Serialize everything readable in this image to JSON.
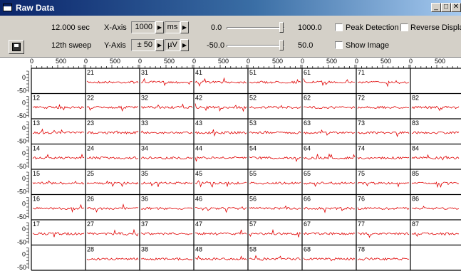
{
  "window": {
    "title": "Raw Data",
    "minimize": "_",
    "restore": "□",
    "close": "✕"
  },
  "toolbar": {
    "time": "12.000 sec",
    "sweep": "12th sweep",
    "xaxis_label": "X-Axis",
    "xaxis_value": "1000",
    "xaxis_unit": "ms",
    "yaxis_label": "Y-Axis",
    "yaxis_value": "± 50",
    "yaxis_unit": "µV",
    "x_slider_min": "0.0",
    "x_slider_max": "1000.0",
    "x_slider_level": 1.0,
    "y_slider_min": "-50.0",
    "y_slider_max": "50.0",
    "y_slider_level": 1.0,
    "peak_detection_label": "Peak Detection",
    "peak_detection_checked": false,
    "reverse_display_label": "Reverse Display",
    "reverse_display_checked": false,
    "show_image_label": "Show Image",
    "show_image_checked": false,
    "spin_icon": "spin-right-arrow-icon",
    "save_icon": "floppy-disk-icon"
  },
  "grid": {
    "columns": 8,
    "rows": 8,
    "xticks": [
      "0",
      "500"
    ],
    "yticks": [
      "0",
      "-50"
    ],
    "trace_color": "#e00000",
    "channels": [
      [
        "",
        "21",
        "31",
        "41",
        "51",
        "61",
        "71",
        ""
      ],
      [
        "12",
        "22",
        "32",
        "42",
        "52",
        "62",
        "72",
        "82"
      ],
      [
        "13",
        "23",
        "33",
        "43",
        "53",
        "63",
        "73",
        "83"
      ],
      [
        "14",
        "24",
        "34",
        "44",
        "54",
        "64",
        "74",
        "84"
      ],
      [
        "15",
        "25",
        "35",
        "45",
        "55",
        "65",
        "75",
        "85"
      ],
      [
        "16",
        "26",
        "36",
        "46",
        "56",
        "66",
        "76",
        "86"
      ],
      [
        "17",
        "27",
        "37",
        "47",
        "57",
        "67",
        "77",
        "87"
      ],
      [
        "",
        "28",
        "38",
        "48",
        "58",
        "68",
        "78",
        ""
      ]
    ]
  }
}
